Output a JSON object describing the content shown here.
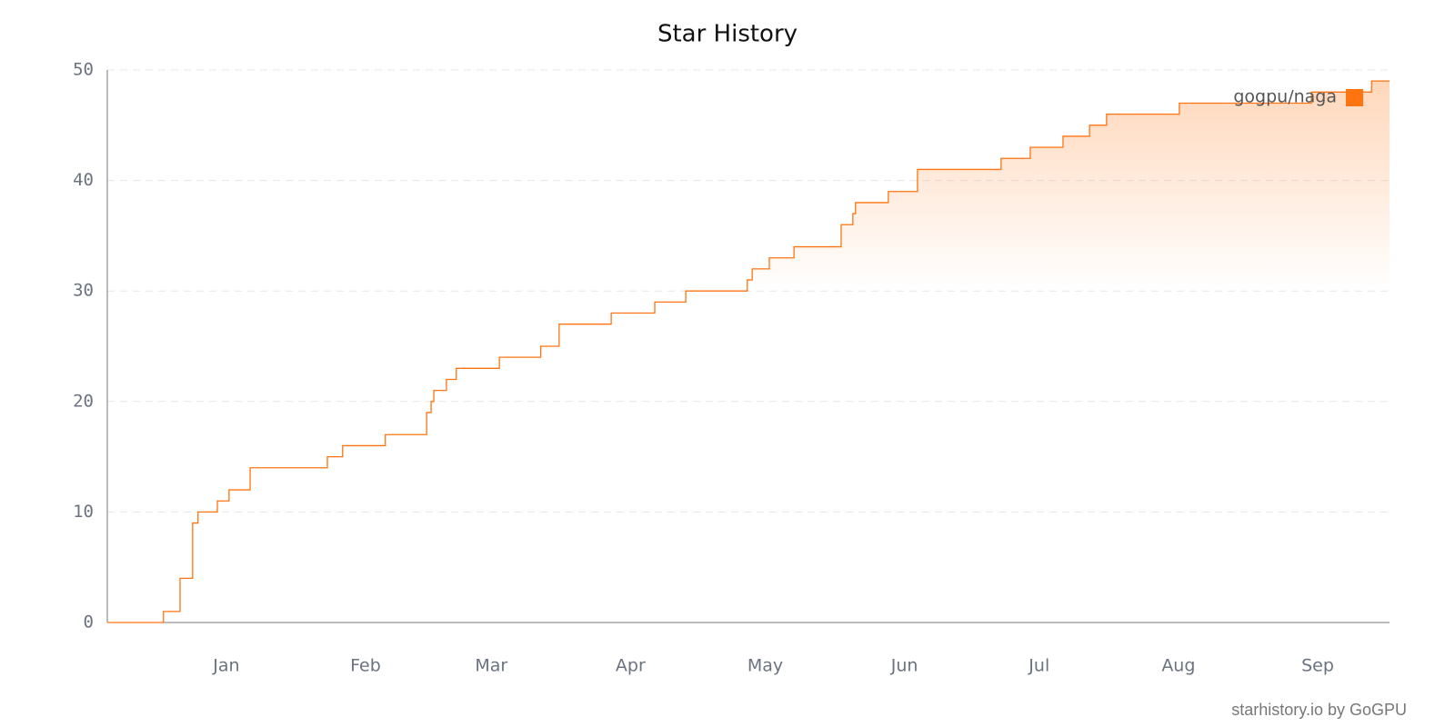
{
  "chart_data": {
    "type": "step-line",
    "title": "Star History",
    "footer": "starhistory.io by GoGPU",
    "legend": "top-right",
    "grid": true,
    "xlim": [
      -26.5,
      259
    ],
    "xticks": [
      {
        "value": 0,
        "label": "Jan"
      },
      {
        "value": 31,
        "label": "Feb"
      },
      {
        "value": 59,
        "label": "Mar"
      },
      {
        "value": 90,
        "label": "Apr"
      },
      {
        "value": 120,
        "label": "May"
      },
      {
        "value": 151,
        "label": "Jun"
      },
      {
        "value": 181,
        "label": "Jul"
      },
      {
        "value": 212,
        "label": "Aug"
      },
      {
        "value": 243,
        "label": "Sep"
      }
    ],
    "ylim": [
      0,
      50
    ],
    "yticks": [
      0,
      10,
      20,
      30,
      40,
      50
    ],
    "series": [
      {
        "name": "gogpu/naga",
        "color": "#ff7410",
        "x": [
          -26.5,
          -14,
          -10.3,
          -7.5,
          -6.3,
          -2,
          0.6,
          5.3,
          22.5,
          25.9,
          35.4,
          44.6,
          45.6,
          46.2,
          49,
          51.2,
          60.8,
          70,
          74.1,
          85.7,
          95.4,
          102.3,
          116,
          117.1,
          120.9,
          126.4,
          136.9,
          139.5,
          140.1,
          147.4,
          153.9,
          172.5,
          179,
          186.3,
          192.2,
          196,
          212.2,
          241.6,
          255,
          259
        ],
        "values": [
          0,
          1,
          4,
          9,
          10,
          11,
          12,
          14,
          15,
          16,
          17,
          19,
          20,
          21,
          22,
          23,
          24,
          25,
          27,
          28,
          29,
          30,
          31,
          32,
          33,
          34,
          36,
          37,
          38,
          39,
          41,
          42,
          43,
          44,
          45,
          46,
          47,
          48,
          49,
          49
        ]
      }
    ]
  }
}
